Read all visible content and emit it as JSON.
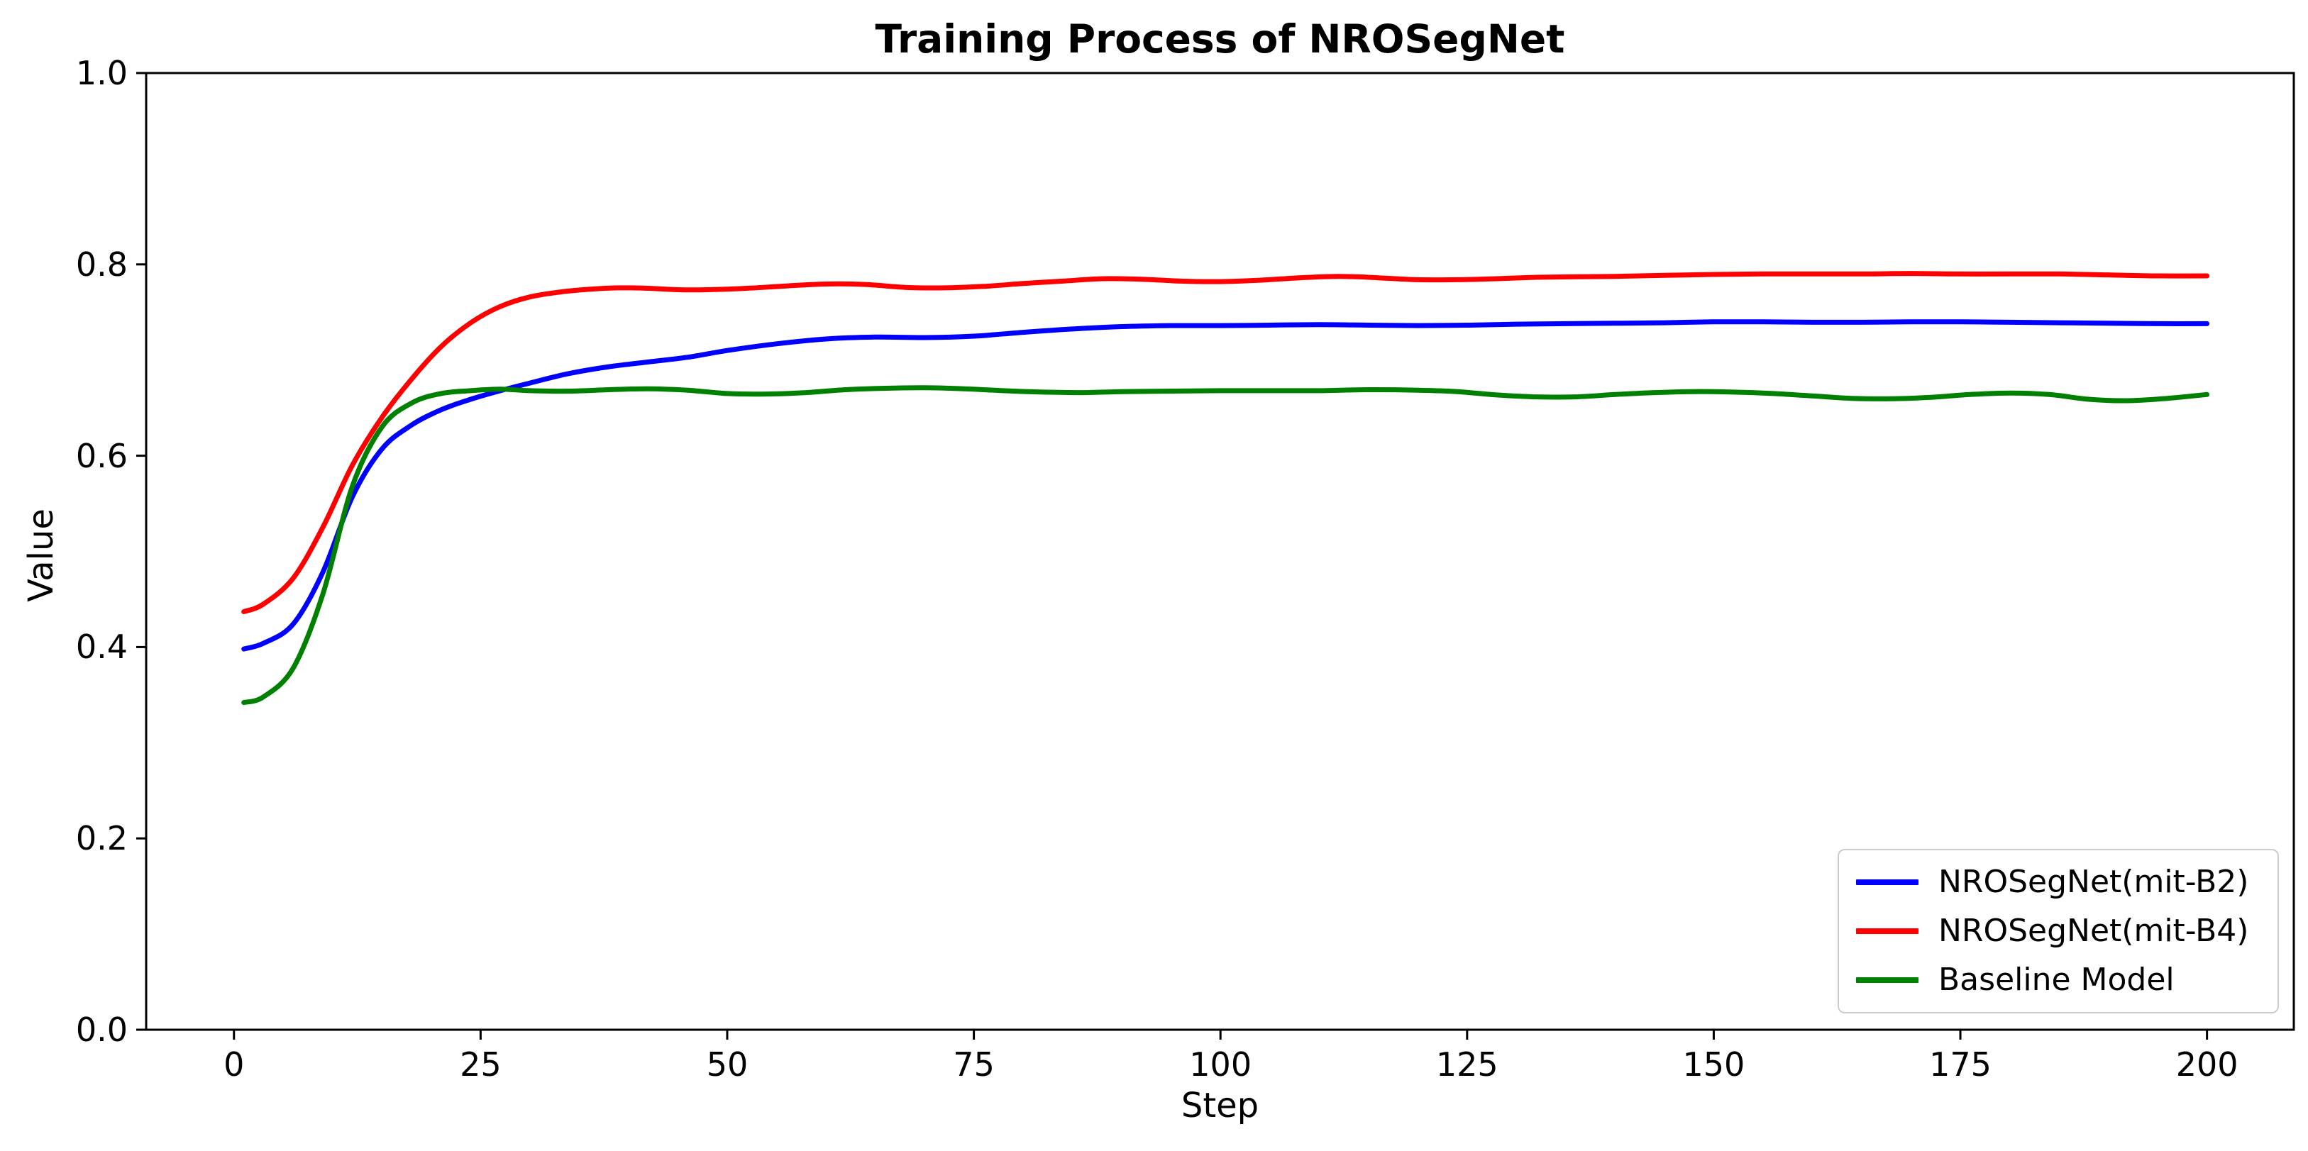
{
  "accent_colors": {
    "blue": "#0000ff",
    "red": "#ff0000",
    "green": "#008000",
    "axis": "#000000",
    "legend_border": "#cccccc",
    "background": "#ffffff"
  },
  "chart_data": {
    "type": "line",
    "title": "Training Process of NROSegNet",
    "xlabel": "Step",
    "ylabel": "Value",
    "xlim": [
      -8.9,
      208.8
    ],
    "ylim": [
      0,
      1
    ],
    "x_ticks": [
      "0",
      "25",
      "50",
      "75",
      "100",
      "125",
      "150",
      "175",
      "200"
    ],
    "x_tick_values": [
      0,
      25,
      50,
      75,
      100,
      125,
      150,
      175,
      200
    ],
    "y_ticks": [
      "0.0",
      "0.2",
      "0.4",
      "0.6",
      "0.8",
      "1.0"
    ],
    "y_tick_values": [
      0.0,
      0.2,
      0.4,
      0.6,
      0.8,
      1.0
    ],
    "grid": false,
    "legend": {
      "position": "lower right"
    },
    "series": [
      {
        "name": "NROSegNet(mit-B2)",
        "color": "#0000ff",
        "x": [
          1,
          3,
          6,
          9,
          12,
          15,
          18,
          21,
          24,
          27,
          30,
          34,
          38,
          42,
          46,
          50,
          55,
          60,
          65,
          70,
          75,
          80,
          85,
          90,
          95,
          100,
          105,
          110,
          115,
          120,
          125,
          130,
          135,
          140,
          145,
          150,
          155,
          160,
          165,
          170,
          175,
          180,
          185,
          190,
          195,
          200
        ],
        "values": [
          0.398,
          0.404,
          0.424,
          0.478,
          0.557,
          0.607,
          0.632,
          0.648,
          0.659,
          0.668,
          0.676,
          0.686,
          0.693,
          0.698,
          0.703,
          0.71,
          0.717,
          0.722,
          0.724,
          0.7235,
          0.725,
          0.729,
          0.7325,
          0.735,
          0.736,
          0.736,
          0.7365,
          0.737,
          0.7365,
          0.736,
          0.7365,
          0.7375,
          0.738,
          0.7385,
          0.739,
          0.74,
          0.74,
          0.7395,
          0.7395,
          0.74,
          0.74,
          0.7395,
          0.739,
          0.7385,
          0.738,
          0.738
        ]
      },
      {
        "name": "NROSegNet(mit-B4)",
        "color": "#ff0000",
        "x": [
          1,
          3,
          6,
          9,
          12,
          15,
          18,
          21,
          24,
          27,
          30,
          33,
          36,
          39,
          42,
          45,
          48,
          52,
          56,
          60,
          64,
          68,
          72,
          76,
          80,
          84,
          88,
          92,
          96,
          100,
          104,
          108,
          112,
          116,
          120,
          124,
          128,
          132,
          136,
          140,
          145,
          150,
          155,
          160,
          165,
          170,
          175,
          180,
          185,
          190,
          195,
          200
        ],
        "values": [
          0.437,
          0.445,
          0.472,
          0.525,
          0.59,
          0.64,
          0.68,
          0.714,
          0.739,
          0.756,
          0.766,
          0.771,
          0.774,
          0.7755,
          0.775,
          0.7735,
          0.7735,
          0.775,
          0.7775,
          0.7795,
          0.779,
          0.776,
          0.7755,
          0.777,
          0.78,
          0.7825,
          0.785,
          0.7845,
          0.7825,
          0.782,
          0.7835,
          0.786,
          0.7875,
          0.786,
          0.784,
          0.784,
          0.785,
          0.7865,
          0.787,
          0.7875,
          0.7885,
          0.7895,
          0.79,
          0.79,
          0.79,
          0.7905,
          0.79,
          0.79,
          0.79,
          0.789,
          0.788,
          0.788
        ]
      },
      {
        "name": "Baseline Model",
        "color": "#008000",
        "x": [
          1,
          3,
          6,
          9,
          12,
          15,
          18,
          21,
          24,
          27,
          30,
          34,
          38,
          42,
          46,
          50,
          54,
          58,
          62,
          66,
          70,
          74,
          78,
          82,
          86,
          90,
          95,
          100,
          105,
          110,
          115,
          120,
          124,
          128,
          132,
          136,
          140,
          144,
          148,
          152,
          156,
          160,
          164,
          168,
          172,
          176,
          180,
          184,
          188,
          192,
          196,
          200
        ],
        "values": [
          0.342,
          0.348,
          0.378,
          0.455,
          0.568,
          0.63,
          0.655,
          0.665,
          0.668,
          0.6695,
          0.668,
          0.6675,
          0.669,
          0.67,
          0.6685,
          0.665,
          0.6645,
          0.666,
          0.669,
          0.6705,
          0.671,
          0.67,
          0.668,
          0.6665,
          0.666,
          0.667,
          0.6675,
          0.668,
          0.668,
          0.668,
          0.669,
          0.6685,
          0.667,
          0.6635,
          0.6615,
          0.6615,
          0.664,
          0.666,
          0.667,
          0.6665,
          0.665,
          0.6625,
          0.66,
          0.6595,
          0.661,
          0.664,
          0.6655,
          0.664,
          0.659,
          0.6575,
          0.66,
          0.664
        ]
      }
    ]
  }
}
